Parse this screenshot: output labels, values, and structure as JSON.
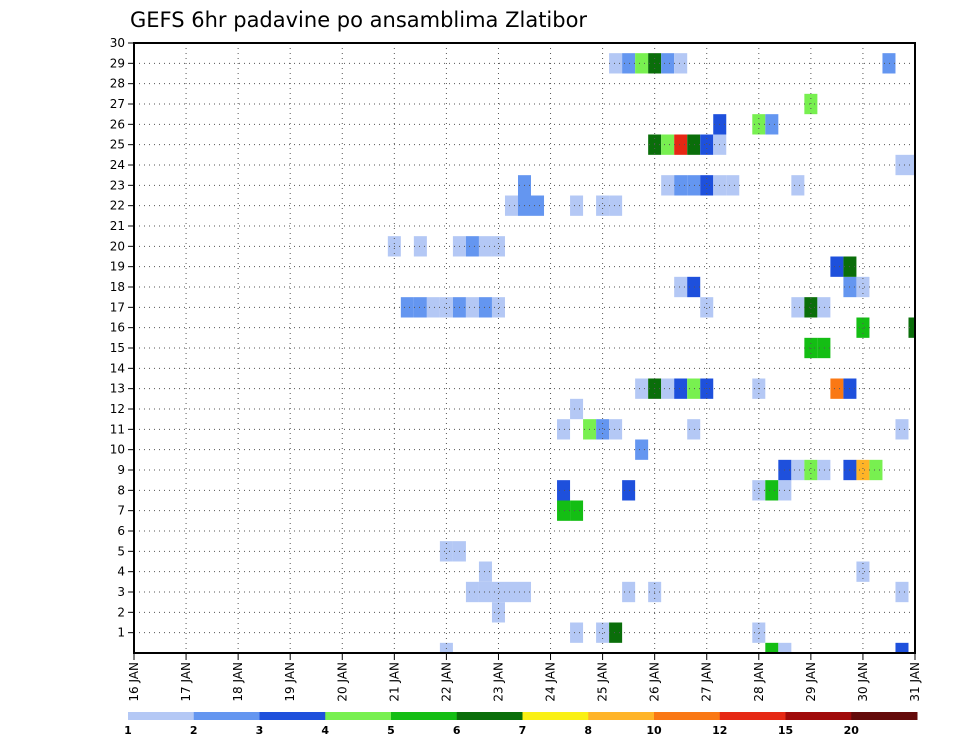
{
  "chart_data": {
    "type": "heatmap",
    "title": "GEFS 6hr padavine po ansamblima Zlatibor",
    "xlabel": "",
    "ylabel": "",
    "x_unit": "day (Jan)",
    "xlim": [
      16,
      31
    ],
    "ylim": [
      0,
      30
    ],
    "x_ticks": [
      16,
      17,
      18,
      19,
      20,
      21,
      22,
      23,
      24,
      25,
      26,
      27,
      28,
      29,
      30,
      31
    ],
    "x_tick_labels": [
      "16 JAN",
      "17 JAN",
      "18 JAN",
      "19 JAN",
      "20 JAN",
      "21 JAN",
      "22 JAN",
      "23 JAN",
      "24 JAN",
      "25 JAN",
      "26 JAN",
      "27 JAN",
      "28 JAN",
      "29 JAN",
      "30 JAN",
      "31 JAN"
    ],
    "y_ticks": [
      1,
      2,
      3,
      4,
      5,
      6,
      7,
      8,
      9,
      10,
      11,
      12,
      13,
      14,
      15,
      16,
      17,
      18,
      19,
      20,
      21,
      22,
      23,
      24,
      25,
      26,
      27,
      28,
      29,
      30
    ],
    "y_tick_labels": [
      "1",
      "2",
      "3",
      "4",
      "5",
      "6",
      "7",
      "8",
      "9",
      "10",
      "11",
      "12",
      "13",
      "14",
      "15",
      "16",
      "17",
      "18",
      "19",
      "20",
      "21",
      "22",
      "23",
      "24",
      "25",
      "26",
      "27",
      "28",
      "29",
      "30"
    ],
    "grid": true,
    "levels": [
      "1",
      "2",
      "3",
      "4",
      "5",
      "6",
      "7",
      "8",
      "10",
      "12",
      "15",
      "20"
    ],
    "colors": [
      "#b4c8f5",
      "#6496f0",
      "#1e50dc",
      "#78f050",
      "#14be14",
      "#0a6e0a",
      "#faf014",
      "#ffb428",
      "#fa7814",
      "#e62814",
      "#a00a0a",
      "#640a0a"
    ],
    "cells": [
      {
        "x": 22.0,
        "y": 0,
        "v": 1
      },
      {
        "x": 28.25,
        "y": 0,
        "v": 5
      },
      {
        "x": 28.5,
        "y": 0,
        "v": 1
      },
      {
        "x": 30.75,
        "y": 0,
        "v": 3
      },
      {
        "x": 24.5,
        "y": 1,
        "v": 1
      },
      {
        "x": 25.0,
        "y": 1,
        "v": 1
      },
      {
        "x": 25.25,
        "y": 1,
        "v": 6
      },
      {
        "x": 28.0,
        "y": 1,
        "v": 1
      },
      {
        "x": 23.0,
        "y": 2,
        "v": 1
      },
      {
        "x": 22.5,
        "y": 3,
        "v": 1
      },
      {
        "x": 22.75,
        "y": 3,
        "v": 1
      },
      {
        "x": 23.0,
        "y": 3,
        "v": 1
      },
      {
        "x": 23.25,
        "y": 3,
        "v": 1
      },
      {
        "x": 23.5,
        "y": 3,
        "v": 1
      },
      {
        "x": 25.5,
        "y": 3,
        "v": 1
      },
      {
        "x": 26.0,
        "y": 3,
        "v": 1
      },
      {
        "x": 30.75,
        "y": 3,
        "v": 1
      },
      {
        "x": 22.75,
        "y": 4,
        "v": 1
      },
      {
        "x": 30.0,
        "y": 4,
        "v": 1
      },
      {
        "x": 22.0,
        "y": 5,
        "v": 1
      },
      {
        "x": 22.25,
        "y": 5,
        "v": 1
      },
      {
        "x": 24.25,
        "y": 7,
        "v": 5
      },
      {
        "x": 24.5,
        "y": 7,
        "v": 5
      },
      {
        "x": 24.25,
        "y": 8,
        "v": 3
      },
      {
        "x": 25.5,
        "y": 8,
        "v": 3
      },
      {
        "x": 28.0,
        "y": 8,
        "v": 1
      },
      {
        "x": 28.25,
        "y": 8,
        "v": 5
      },
      {
        "x": 28.5,
        "y": 8,
        "v": 1
      },
      {
        "x": 28.5,
        "y": 9,
        "v": 3
      },
      {
        "x": 28.75,
        "y": 9,
        "v": 1
      },
      {
        "x": 29.0,
        "y": 9,
        "v": 4
      },
      {
        "x": 29.25,
        "y": 9,
        "v": 1
      },
      {
        "x": 29.75,
        "y": 9,
        "v": 3
      },
      {
        "x": 30.0,
        "y": 9,
        "v": 8
      },
      {
        "x": 30.25,
        "y": 9,
        "v": 4
      },
      {
        "x": 25.75,
        "y": 10,
        "v": 2
      },
      {
        "x": 24.25,
        "y": 11,
        "v": 1
      },
      {
        "x": 24.75,
        "y": 11,
        "v": 4
      },
      {
        "x": 25.0,
        "y": 11,
        "v": 2
      },
      {
        "x": 25.25,
        "y": 11,
        "v": 1
      },
      {
        "x": 26.75,
        "y": 11,
        "v": 1
      },
      {
        "x": 30.75,
        "y": 11,
        "v": 1
      },
      {
        "x": 24.5,
        "y": 12,
        "v": 1
      },
      {
        "x": 25.75,
        "y": 13,
        "v": 1
      },
      {
        "x": 26.0,
        "y": 13,
        "v": 6
      },
      {
        "x": 26.25,
        "y": 13,
        "v": 1
      },
      {
        "x": 26.5,
        "y": 13,
        "v": 3
      },
      {
        "x": 26.75,
        "y": 13,
        "v": 4
      },
      {
        "x": 27.0,
        "y": 13,
        "v": 3
      },
      {
        "x": 28.0,
        "y": 13,
        "v": 1
      },
      {
        "x": 29.5,
        "y": 13,
        "v": 10
      },
      {
        "x": 29.75,
        "y": 13,
        "v": 3
      },
      {
        "x": 29.0,
        "y": 15,
        "v": 5
      },
      {
        "x": 29.25,
        "y": 15,
        "v": 5
      },
      {
        "x": 30.0,
        "y": 16,
        "v": 5
      },
      {
        "x": 31.0,
        "y": 16,
        "v": 6
      },
      {
        "x": 21.25,
        "y": 17,
        "v": 2
      },
      {
        "x": 21.5,
        "y": 17,
        "v": 2
      },
      {
        "x": 21.75,
        "y": 17,
        "v": 1
      },
      {
        "x": 22.0,
        "y": 17,
        "v": 1
      },
      {
        "x": 22.25,
        "y": 17,
        "v": 2
      },
      {
        "x": 22.5,
        "y": 17,
        "v": 1
      },
      {
        "x": 22.75,
        "y": 17,
        "v": 2
      },
      {
        "x": 23.0,
        "y": 17,
        "v": 1
      },
      {
        "x": 27.0,
        "y": 17,
        "v": 1
      },
      {
        "x": 28.75,
        "y": 17,
        "v": 1
      },
      {
        "x": 29.0,
        "y": 17,
        "v": 6
      },
      {
        "x": 29.25,
        "y": 17,
        "v": 1
      },
      {
        "x": 26.5,
        "y": 18,
        "v": 1
      },
      {
        "x": 26.75,
        "y": 18,
        "v": 3
      },
      {
        "x": 29.75,
        "y": 18,
        "v": 2
      },
      {
        "x": 30.0,
        "y": 18,
        "v": 1
      },
      {
        "x": 29.5,
        "y": 19,
        "v": 3
      },
      {
        "x": 29.75,
        "y": 19,
        "v": 6
      },
      {
        "x": 21.0,
        "y": 20,
        "v": 1
      },
      {
        "x": 21.5,
        "y": 20,
        "v": 1
      },
      {
        "x": 22.25,
        "y": 20,
        "v": 1
      },
      {
        "x": 22.5,
        "y": 20,
        "v": 2
      },
      {
        "x": 22.75,
        "y": 20,
        "v": 1
      },
      {
        "x": 23.0,
        "y": 20,
        "v": 1
      },
      {
        "x": 23.25,
        "y": 22,
        "v": 1
      },
      {
        "x": 23.5,
        "y": 22,
        "v": 2
      },
      {
        "x": 23.75,
        "y": 22,
        "v": 2
      },
      {
        "x": 24.5,
        "y": 22,
        "v": 1
      },
      {
        "x": 25.0,
        "y": 22,
        "v": 1
      },
      {
        "x": 25.25,
        "y": 22,
        "v": 1
      },
      {
        "x": 23.5,
        "y": 23,
        "v": 2
      },
      {
        "x": 26.25,
        "y": 23,
        "v": 1
      },
      {
        "x": 26.5,
        "y": 23,
        "v": 2
      },
      {
        "x": 26.75,
        "y": 23,
        "v": 2
      },
      {
        "x": 27.0,
        "y": 23,
        "v": 3
      },
      {
        "x": 27.25,
        "y": 23,
        "v": 1
      },
      {
        "x": 27.5,
        "y": 23,
        "v": 1
      },
      {
        "x": 28.75,
        "y": 23,
        "v": 1
      },
      {
        "x": 30.75,
        "y": 24,
        "v": 1
      },
      {
        "x": 31.0,
        "y": 24,
        "v": 1
      },
      {
        "x": 26.0,
        "y": 25,
        "v": 6
      },
      {
        "x": 26.25,
        "y": 25,
        "v": 4
      },
      {
        "x": 26.5,
        "y": 25,
        "v": 12
      },
      {
        "x": 26.75,
        "y": 25,
        "v": 6
      },
      {
        "x": 27.0,
        "y": 25,
        "v": 3
      },
      {
        "x": 27.25,
        "y": 25,
        "v": 1
      },
      {
        "x": 27.25,
        "y": 26,
        "v": 3
      },
      {
        "x": 28.0,
        "y": 26,
        "v": 4
      },
      {
        "x": 28.25,
        "y": 26,
        "v": 2
      },
      {
        "x": 29.0,
        "y": 27,
        "v": 4
      },
      {
        "x": 25.25,
        "y": 29,
        "v": 1
      },
      {
        "x": 25.5,
        "y": 29,
        "v": 2
      },
      {
        "x": 25.75,
        "y": 29,
        "v": 4
      },
      {
        "x": 26.0,
        "y": 29,
        "v": 6
      },
      {
        "x": 26.25,
        "y": 29,
        "v": 2
      },
      {
        "x": 26.5,
        "y": 29,
        "v": 1
      },
      {
        "x": 30.5,
        "y": 29,
        "v": 2
      }
    ]
  }
}
